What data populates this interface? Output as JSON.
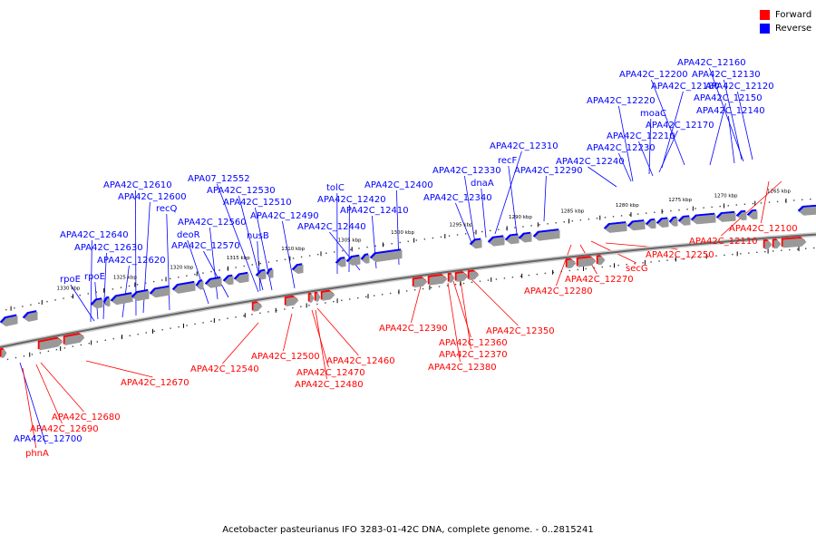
{
  "colors": {
    "forward": "#ff0000",
    "reverse": "#0000ff",
    "backbone": "#888888",
    "tick": "#000000"
  },
  "legend": {
    "forward_label": "Forward",
    "reverse_label": "Reverse"
  },
  "caption": "Acetobacter pasteurianus IFO 3283-01-42C DNA, complete genome. - 0..2815241",
  "scale_labels": [
    "1265 kbp",
    "1270 kbp",
    "1275 kbp",
    "1280 kbp",
    "1285 kbp",
    "1290 kbp",
    "1295 kbp",
    "1300 kbp",
    "1305 kbp",
    "1310 kbp",
    "1315 kbp",
    "1320 kbp",
    "1325 kbp",
    "1330 kbp"
  ],
  "reverse_labels": [
    "APA42C_12160",
    "APA42C_12200",
    "APA42C_12130",
    "APA42C_12180",
    "APA42C_12120",
    "APA42C_12220",
    "APA42C_12150",
    "moaC",
    "APA42C_12140",
    "APA42C_12170",
    "APA42C_12210",
    "APA42C_12230",
    "APA42C_12310",
    "APA42C_12240",
    "recF",
    "APA42C_12330",
    "APA42C_12290",
    "dnaA",
    "APA42C_12340",
    "APA07_12552",
    "APA42C_12610",
    "APA42C_12530",
    "tolC",
    "APA42C_12400",
    "APA42C_12600",
    "APA42C_12420",
    "APA42C_12510",
    "recQ",
    "APA42C_12410",
    "APA42C_12490",
    "APA42C_12560",
    "deoR",
    "nusB",
    "APA42C_12440",
    "APA42C_12640",
    "APA42C_12570",
    "APA42C_12630",
    "rpoE",
    "APA42C_12620",
    "rpoE",
    "APA42C_12700"
  ],
  "forward_labels": [
    "APA42C_12100",
    "APA42C_12110",
    "APA42C_12250",
    "secG",
    "APA42C_12270",
    "APA42C_12280",
    "APA42C_12350",
    "APA42C_12390",
    "APA42C_12360",
    "APA42C_12370",
    "APA42C_12380",
    "APA42C_12500",
    "APA42C_12460",
    "APA42C_12540",
    "APA42C_12470",
    "APA42C_12480",
    "APA42C_12670",
    "APA42C_12680",
    "APA42C_12690",
    "phnA"
  ]
}
